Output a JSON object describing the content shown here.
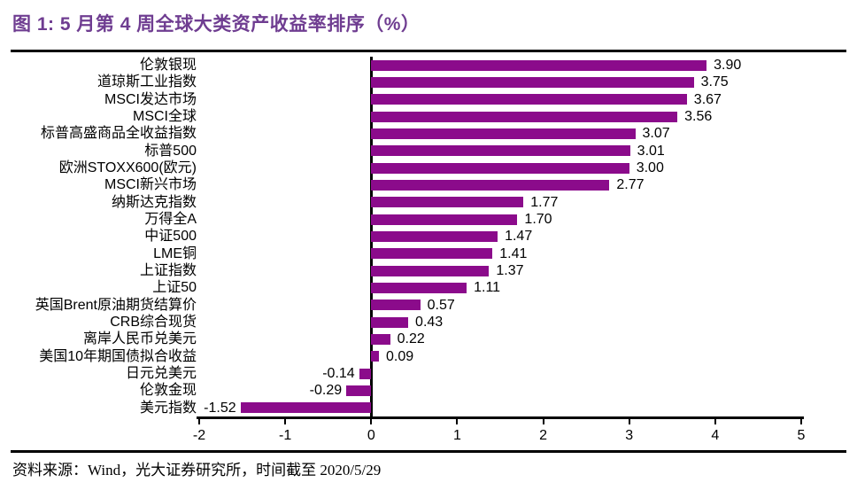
{
  "figure": {
    "title": "图 1: 5 月第 4 周全球大类资产收益率排序（%）",
    "source_note": "资料来源：Wind，光大证券研究所，时间截至 2020/5/29"
  },
  "colors": {
    "bar": "#8B0B8B",
    "title": "#6F3D91",
    "axis": "#000000",
    "background": "#ffffff"
  },
  "chart_data": {
    "type": "bar",
    "orientation": "horizontal",
    "title": "5 月第 4 周全球大类资产收益率排序（%）",
    "xlabel": "",
    "ylabel": "",
    "xlim": [
      -2,
      5
    ],
    "xticks": [
      -2,
      -1,
      0,
      1,
      2,
      3,
      4,
      5
    ],
    "grid": false,
    "value_labels": true,
    "categories": [
      "伦敦银现",
      "道琼斯工业指数",
      "MSCI发达市场",
      "MSCI全球",
      "标普高盛商品全收益指数",
      "标普500",
      "欧洲STOXX600(欧元)",
      "MSCI新兴市场",
      "纳斯达克指数",
      "万得全A",
      "中证500",
      "LME铜",
      "上证指数",
      "上证50",
      "英国Brent原油期货结算价",
      "CRB综合现货",
      "离岸人民币兑美元",
      "美国10年期国债拟合收益",
      "日元兑美元",
      "伦敦金现",
      "美元指数"
    ],
    "values": [
      3.9,
      3.75,
      3.67,
      3.56,
      3.07,
      3.01,
      3.0,
      2.77,
      1.77,
      1.7,
      1.47,
      1.41,
      1.37,
      1.11,
      0.57,
      0.43,
      0.22,
      0.09,
      -0.14,
      -0.29,
      -1.52
    ]
  }
}
